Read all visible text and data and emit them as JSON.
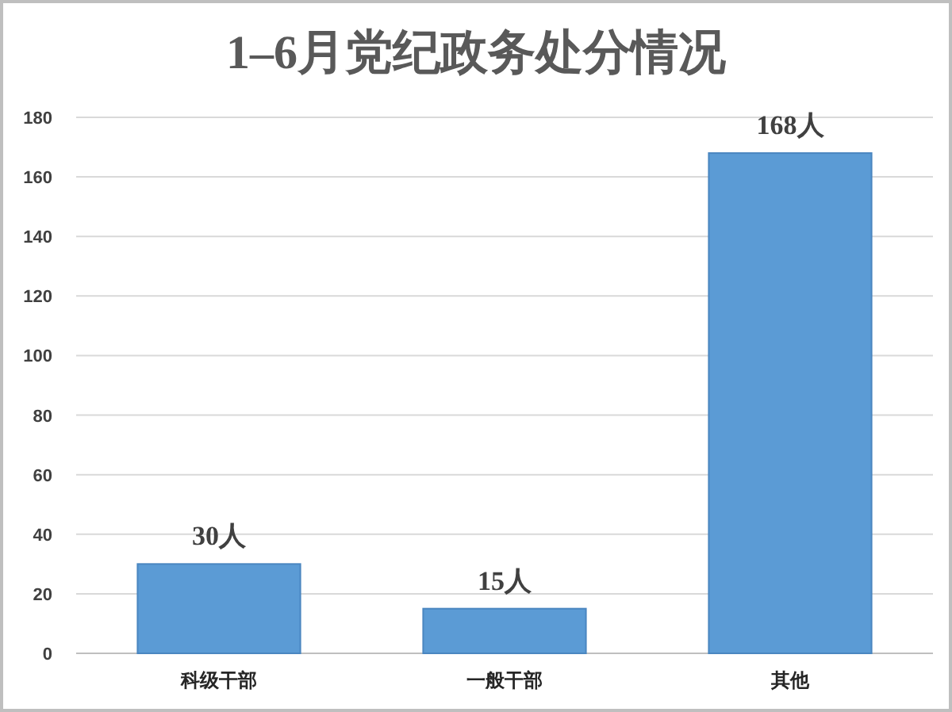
{
  "chart_data": {
    "type": "bar",
    "title": "1–6月党纪政务处分情况",
    "categories": [
      "科级干部",
      "一般干部",
      "其他"
    ],
    "values": [
      30,
      15,
      168
    ],
    "value_labels": [
      "30人",
      "15人",
      "168人"
    ],
    "color": "#5b9bd5",
    "ylim": [
      0,
      180
    ],
    "yticks": [
      0,
      20,
      40,
      60,
      80,
      100,
      120,
      140,
      160,
      180
    ],
    "grid": "y"
  }
}
